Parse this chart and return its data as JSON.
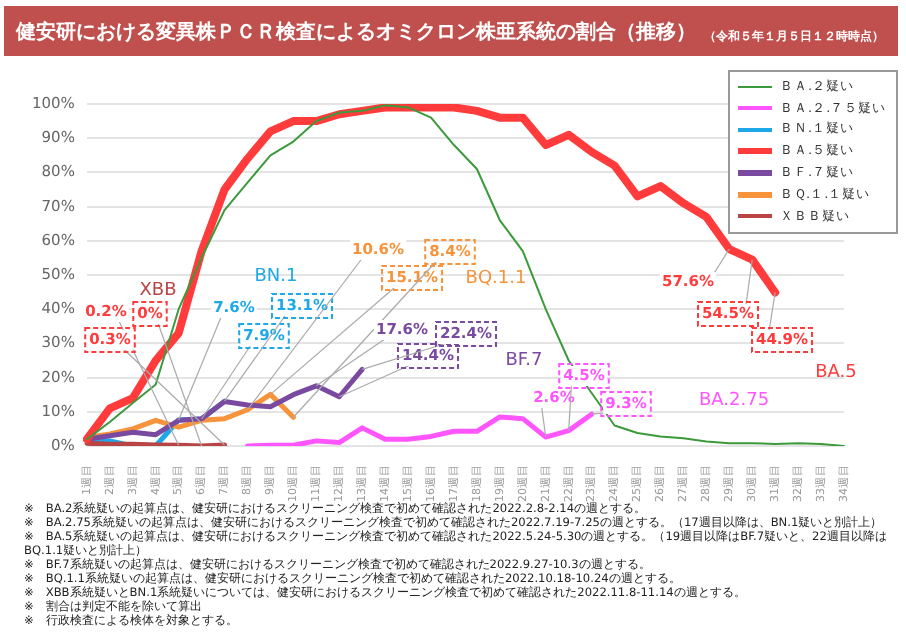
{
  "chart_data": {
    "type": "line",
    "title": "健安研における変異株ＰＣＲ検査によるオミクロン株亜系統の割合（推移）",
    "subtitle": "（令和５年１月５日１２時時点）",
    "categories": [
      "1週目",
      "2週目",
      "3週目",
      "4週目",
      "5週目",
      "6週目",
      "7週目",
      "8週目",
      "9週目",
      "10週目",
      "11週目",
      "12週目",
      "13週目",
      "14週目",
      "15週目",
      "16週目",
      "17週目",
      "18週目",
      "19週目",
      "20週目",
      "21週目",
      "22週目",
      "23週目",
      "24週目",
      "25週目",
      "26週目",
      "27週目",
      "28週目",
      "29週目",
      "30週目",
      "31週目",
      "32週目",
      "33週目",
      "34週目"
    ],
    "series": [
      {
        "name": "ＢＡ.２疑い",
        "color": "#3c9a3c",
        "values": [
          2,
          7,
          12.6,
          18,
          40,
          55,
          69,
          77,
          85,
          89,
          95,
          97.5,
          98,
          99.6,
          99,
          96,
          88,
          81,
          66,
          57,
          40,
          25,
          15.5,
          6,
          3.8,
          2.8,
          2.3,
          1.3,
          0.8,
          0.8,
          0.6,
          0.8,
          0.6,
          0
        ]
      },
      {
        "name": "ＢＡ.２.７５疑い",
        "color": "#ff55ff",
        "values": [
          null,
          null,
          null,
          null,
          null,
          null,
          null,
          0,
          0.2,
          0.2,
          1.5,
          1,
          5.3,
          2,
          2,
          2.8,
          4.3,
          4.3,
          8.5,
          8,
          2.6,
          4.5,
          9.3,
          null,
          null,
          null,
          null,
          null,
          null,
          null,
          null,
          null,
          null,
          null
        ]
      },
      {
        "name": "ＢＮ.１疑い",
        "color": "#1ea8e8",
        "values": [
          2,
          1.5,
          0,
          0,
          7.6,
          7.9,
          13.1,
          null,
          null,
          null,
          null,
          null,
          null,
          null,
          null,
          null,
          null,
          null,
          null,
          null,
          null,
          null,
          null,
          null,
          null,
          null,
          null,
          null,
          null,
          null,
          null,
          null,
          null,
          null
        ]
      },
      {
        "name": "ＢＡ.５疑い",
        "color": "#ff3b3b",
        "values": [
          2,
          11,
          14,
          25,
          33,
          57,
          75,
          84,
          92,
          95,
          95,
          97,
          98,
          99,
          99,
          99,
          99,
          98,
          96,
          96,
          88,
          91,
          86,
          82,
          73,
          76,
          71,
          67,
          57.6,
          54.5,
          44.9,
          null,
          null,
          null
        ]
      },
      {
        "name": "ＢＦ.７疑い",
        "color": "#7a4aa0",
        "values": [
          2,
          3,
          4,
          3.3,
          7.5,
          8,
          13,
          12,
          11.5,
          15,
          17.6,
          14.4,
          22.4,
          null,
          null,
          null,
          null,
          null,
          null,
          null,
          null,
          null,
          null,
          null,
          null,
          null,
          null,
          null,
          null,
          null,
          null,
          null,
          null,
          null
        ]
      },
      {
        "name": "ＢＱ.１.１疑い",
        "color": "#f7933a",
        "values": [
          2.5,
          3.5,
          5,
          7.5,
          5.5,
          7.5,
          8,
          10.6,
          15.1,
          8.4,
          null,
          null,
          null,
          null,
          null,
          null,
          null,
          null,
          null,
          null,
          null,
          null,
          null,
          null,
          null,
          null,
          null,
          null,
          null,
          null,
          null,
          null,
          null,
          null
        ]
      },
      {
        "name": "ＸＢＢ疑い",
        "color": "#b84444",
        "values": [
          0.8,
          0.5,
          0.5,
          0.3,
          0.2,
          0,
          0.3,
          null,
          null,
          null,
          null,
          null,
          null,
          null,
          null,
          null,
          null,
          null,
          null,
          null,
          null,
          null,
          null,
          null,
          null,
          null,
          null,
          null,
          null,
          null,
          null,
          null,
          null,
          null
        ]
      }
    ],
    "ylim": [
      0,
      100
    ],
    "yticks": [
      {
        "value": 0,
        "label": "0%"
      },
      {
        "value": 10,
        "label": "10%"
      },
      {
        "value": 20,
        "label": "20%"
      },
      {
        "value": 30,
        "label": "30%"
      },
      {
        "value": 40,
        "label": "40%"
      },
      {
        "value": 50,
        "label": "50%"
      },
      {
        "value": 60,
        "label": "60%"
      },
      {
        "value": 70,
        "label": "70%"
      },
      {
        "value": 80,
        "label": "80%"
      },
      {
        "value": 90,
        "label": "90%"
      },
      {
        "value": 100,
        "label": "100%"
      }
    ],
    "grid": "y",
    "legend": "top right",
    "marker": "none",
    "line_style": "solid",
    "annotations": [
      "XBB",
      {
        "text": "0.2%",
        "x": "5週目",
        "y": 0.2
      },
      {
        "text": "0%",
        "x": "6週目",
        "y": 0
      },
      {
        "text": "0.3%",
        "x": "7週目",
        "y": 0.3
      },
      "BN.1",
      {
        "text": "7.6%",
        "x": "5週目",
        "y": 7.6
      },
      {
        "text": "7.9%",
        "x": "6週目",
        "y": 7.9
      },
      {
        "text": "13.1%",
        "x": "7週目",
        "y": 13.1
      },
      {
        "text": "10.6%",
        "x": "8週目",
        "y": 10.6
      },
      {
        "text": "15.1%",
        "x": "9週目",
        "y": 15.1
      },
      {
        "text": "8.4%",
        "x": "10週目",
        "y": 8.4
      },
      "BQ.1.1",
      {
        "text": "17.6%",
        "x": "11週目",
        "y": 17.6
      },
      {
        "text": "14.4%",
        "x": "12週目",
        "y": 14.4
      },
      {
        "text": "22.4%",
        "x": "13週目",
        "y": 22.4
      },
      "BF.7",
      {
        "text": "2.6%",
        "x": "21週目",
        "y": 2.6
      },
      {
        "text": "4.5%",
        "x": "22週目",
        "y": 4.5
      },
      {
        "text": "9.3%",
        "x": "23週目",
        "y": 9.3
      },
      "BA.2.75",
      {
        "text": "57.6%",
        "x": "29週目",
        "y": 57.6
      },
      {
        "text": "54.5%",
        "x": "30週目",
        "y": 54.5
      },
      {
        "text": "44.9%",
        "x": "31週目",
        "y": 44.9
      },
      "BA.5",
      "※　BA.2系統疑いの起算点は、健安研におけるスクリーニング検査で初めて確認された2022.2.8-2.14の週とする。",
      "※　BA.2.75系統疑いの起算点は、健安研におけるスクリーニング検査で初めて確認された2022.7.19-7.25の週とする。（17週目以降は、BN.1疑いと別計上）",
      "※　BA.5系統疑いの起算点は、健安研におけるスクリーニング検査で初めて確認された2022.5.24-5.30の週とする。（19週目以降はBF.7疑いと、22週目以降はBQ.1.1疑いと別計上）",
      "※　BF.7系統疑いの起算点は、健安研におけるスクリーニング検査で初めて確認された2022.9.27-10.3の週とする。",
      "※　BQ.1.1系統疑いの起算点は、健安研におけるスクリーニング検査で初めて確認された2022.10.18-10.24の週とする。",
      "※　XBB系統疑いとBN.1系統疑いについては、健安研におけるスクリーニング検査で初めて確認された2022.11.8-11.14の週とする。",
      "※　割合は判定不能を除いて算出",
      "※　行政検査による検体を対象とする。"
    ]
  }
}
